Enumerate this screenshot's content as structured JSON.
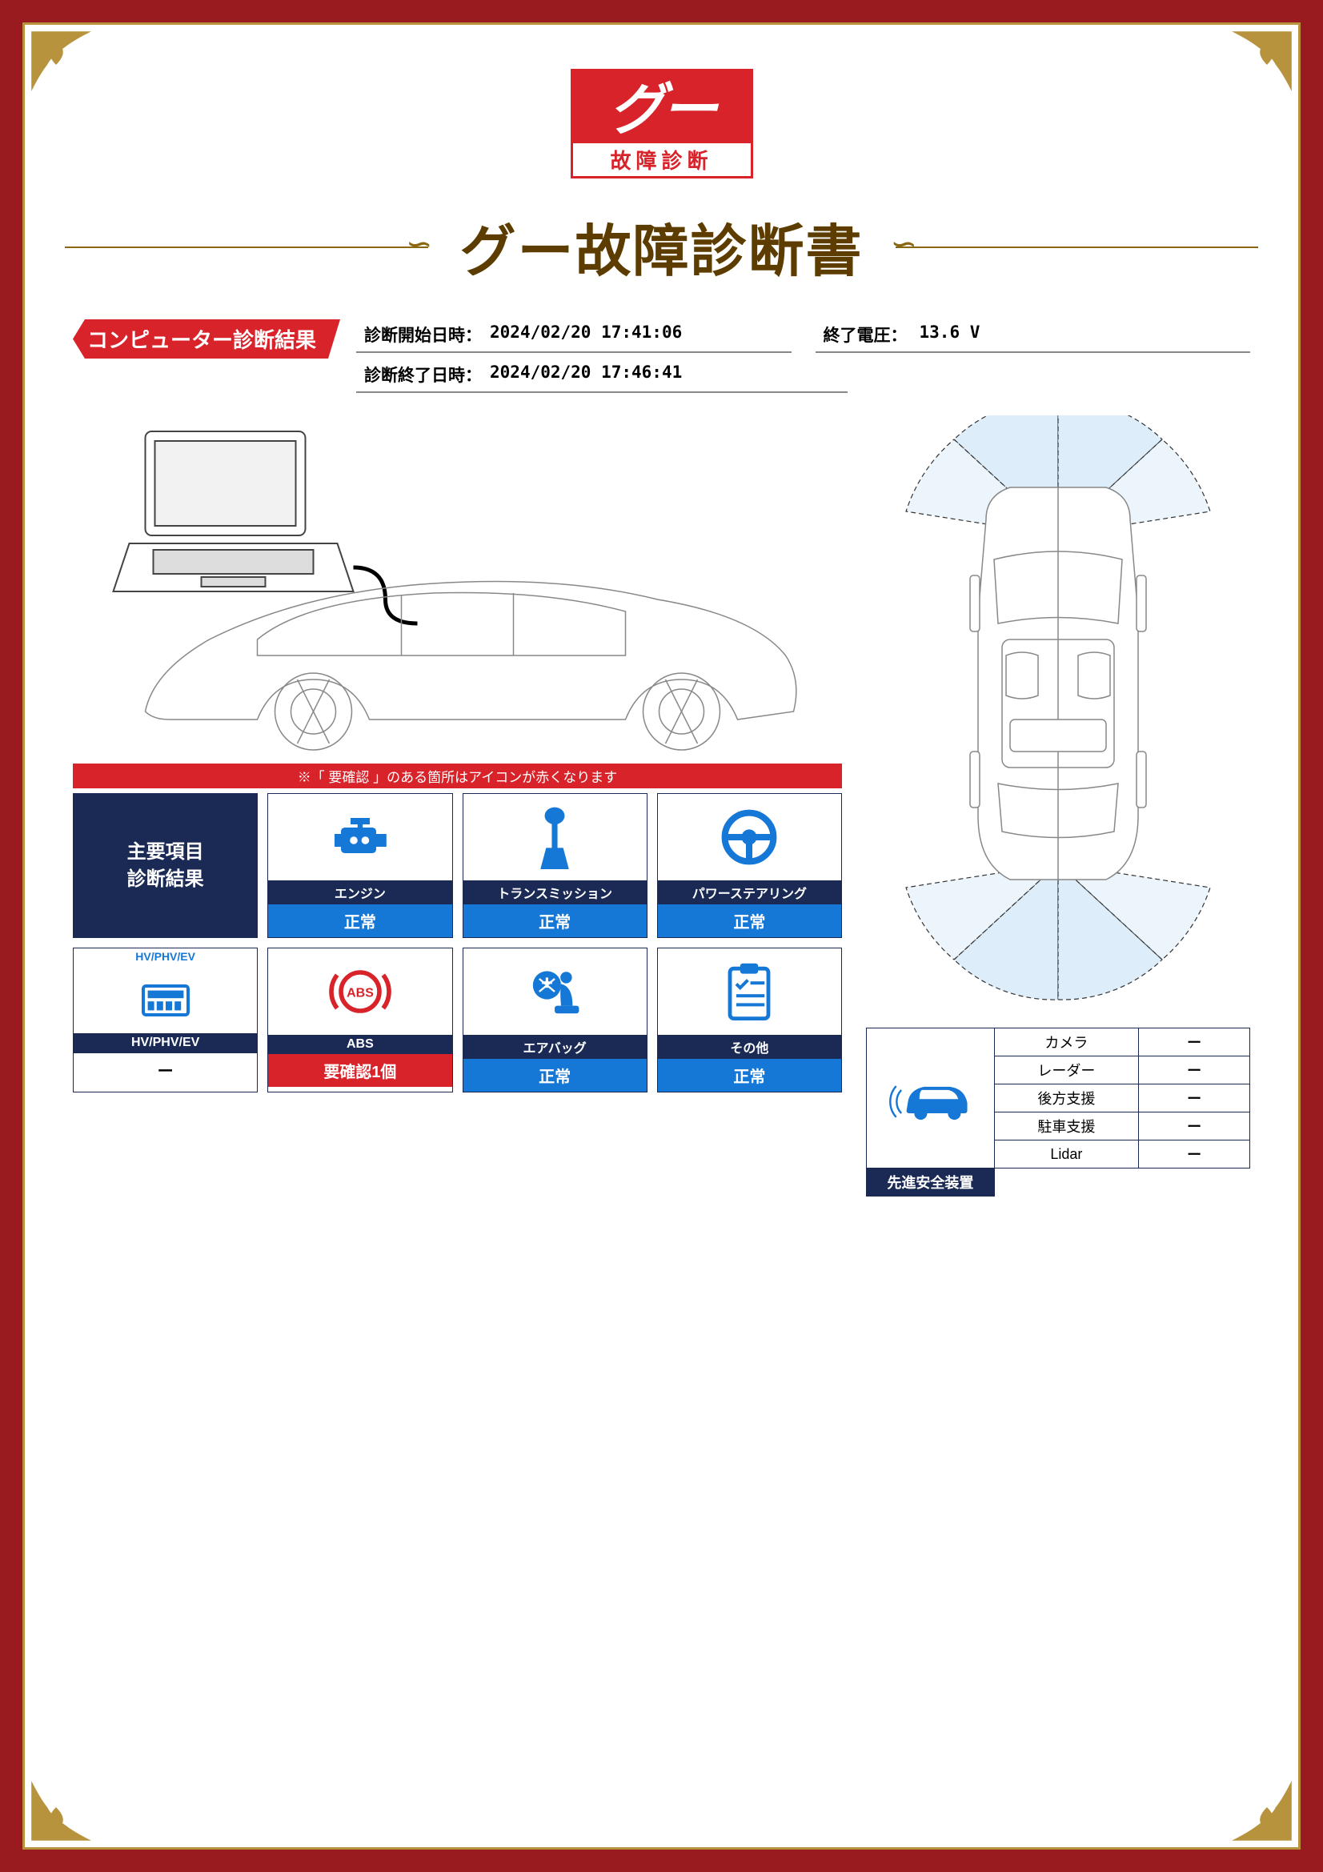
{
  "logo": {
    "brand_text": "グー",
    "sub_text": "故障診断"
  },
  "title": "グー故障診断書",
  "section_header": "コンピューター診断結果",
  "info": {
    "start_label": "診断開始日時：",
    "start_value": "2024/02/20 17:41:06",
    "voltage_label": "終了電圧：",
    "voltage_value": "13.6 V",
    "end_label": "診断終了日時：",
    "end_value": "2024/02/20 17:46:41"
  },
  "note_bar": "※「 要確認 」のある箇所はアイコンが赤くなります",
  "diag": {
    "header_label": "主要項目\n診断結果",
    "engine": {
      "label": "エンジン",
      "status": "正常",
      "status_type": "normal",
      "icon_color": "#1577d6"
    },
    "transmission": {
      "label": "トランスミッション",
      "status": "正常",
      "status_type": "normal",
      "icon_color": "#1577d6"
    },
    "power_steering": {
      "label": "パワーステアリング",
      "status": "正常",
      "status_type": "normal",
      "icon_color": "#1577d6"
    },
    "hv": {
      "label": "HV/PHV/EV",
      "top_label": "HV/PHV/EV",
      "status": "ー",
      "status_type": "none",
      "icon_color": "#1577d6"
    },
    "abs": {
      "label": "ABS",
      "status": "要確認1個",
      "status_type": "warn",
      "icon_color": "#d8232a"
    },
    "airbag": {
      "label": "エアバッグ",
      "status": "正常",
      "status_type": "normal",
      "icon_color": "#1577d6"
    },
    "other": {
      "label": "その他",
      "status": "正常",
      "status_type": "normal",
      "icon_color": "#1577d6"
    }
  },
  "safety": {
    "header": "先進安全装置",
    "rows": [
      {
        "label": "カメラ",
        "value": "ー"
      },
      {
        "label": "レーダー",
        "value": "ー"
      },
      {
        "label": "後方支援",
        "value": "ー"
      },
      {
        "label": "駐車支援",
        "value": "ー"
      },
      {
        "label": "Lidar",
        "value": "ー"
      }
    ],
    "icon_color": "#1577d6"
  },
  "colors": {
    "frame": "#9a1b1f",
    "gold": "#b8933e",
    "navy": "#1a2a55",
    "blue": "#1577d6",
    "red": "#d8232a",
    "title_brown": "#5d3c00",
    "line_gold": "#8a6610",
    "sensor_fill": "#cfe6f7"
  },
  "icons": {
    "engine_svg": "engine",
    "transmission_svg": "gear-lever",
    "steering_svg": "steering-wheel",
    "hv_svg": "battery-ecu",
    "abs_svg": "abs-circle",
    "airbag_svg": "airbag-seat",
    "other_svg": "clipboard"
  }
}
